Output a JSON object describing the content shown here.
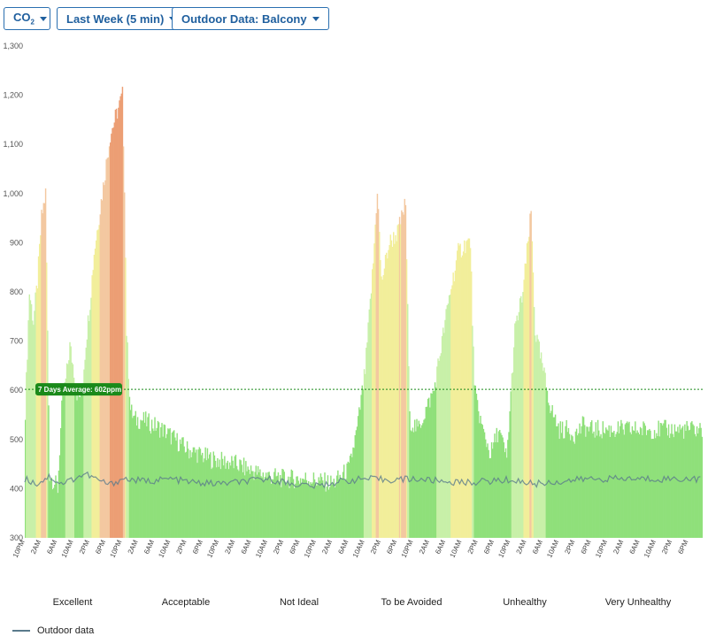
{
  "toolbar": {
    "metric_base": "CO",
    "metric_sub": "2",
    "period_label": "Last Week (5 min)",
    "outdoor_label": "Outdoor Data: Balcony"
  },
  "chart_data": {
    "type": "area",
    "ylim": [
      300,
      1300
    ],
    "yticks": [
      "300",
      "400",
      "500",
      "600",
      "700",
      "800",
      "900",
      "1,000",
      "1,100",
      "1,200",
      "1,300"
    ],
    "xticks": [
      "10PM",
      "2AM",
      "6AM",
      "10AM",
      "2PM",
      "6PM",
      "10PM",
      "2AM",
      "6AM",
      "10AM",
      "2PM",
      "6PM",
      "10PM",
      "2AM",
      "6AM",
      "10AM",
      "2PM",
      "6PM",
      "10PM",
      "2AM",
      "6AM",
      "10AM",
      "2PM",
      "6PM",
      "10PM",
      "2AM",
      "6AM",
      "10AM",
      "2PM",
      "6PM",
      "10PM",
      "2AM",
      "6AM",
      "10AM",
      "2PM",
      "6PM",
      "10PM",
      "2AM",
      "6AM",
      "10AM",
      "2PM",
      "6PM"
    ],
    "average": {
      "value": 602,
      "label": "7 Days Average: 602ppm"
    },
    "indoor_anchors_hours": [
      [
        0,
        560
      ],
      [
        1,
        800
      ],
      [
        2,
        740
      ],
      [
        3,
        820
      ],
      [
        4,
        950
      ],
      [
        5,
        1000
      ],
      [
        6,
        430
      ],
      [
        8,
        400
      ],
      [
        9,
        560
      ],
      [
        10,
        620
      ],
      [
        11,
        690
      ],
      [
        12,
        640
      ],
      [
        13,
        580
      ],
      [
        14,
        600
      ],
      [
        15,
        700
      ],
      [
        16,
        780
      ],
      [
        17,
        880
      ],
      [
        19,
        1000
      ],
      [
        21,
        1120
      ],
      [
        24,
        1200
      ],
      [
        24.5,
        1020
      ],
      [
        25,
        720
      ],
      [
        26,
        560
      ],
      [
        27,
        540
      ],
      [
        29,
        540
      ],
      [
        34,
        520
      ],
      [
        40,
        480
      ],
      [
        46,
        460
      ],
      [
        52,
        450
      ],
      [
        58,
        430
      ],
      [
        64,
        420
      ],
      [
        70,
        420
      ],
      [
        76,
        410
      ],
      [
        80,
        440
      ],
      [
        82,
        520
      ],
      [
        84,
        640
      ],
      [
        86,
        860
      ],
      [
        87,
        1010
      ],
      [
        88,
        820
      ],
      [
        90,
        900
      ],
      [
        92,
        920
      ],
      [
        94,
        980
      ],
      [
        95,
        540
      ],
      [
        97,
        520
      ],
      [
        99,
        560
      ],
      [
        101,
        600
      ],
      [
        103,
        700
      ],
      [
        105,
        800
      ],
      [
        107,
        880
      ],
      [
        109,
        900
      ],
      [
        110,
        900
      ],
      [
        111,
        600
      ],
      [
        113,
        520
      ],
      [
        115,
        470
      ],
      [
        117,
        520
      ],
      [
        119,
        460
      ],
      [
        121,
        720
      ],
      [
        123,
        800
      ],
      [
        125,
        960
      ],
      [
        126,
        720
      ],
      [
        128,
        640
      ],
      [
        130,
        560
      ],
      [
        132,
        520
      ],
      [
        134,
        520
      ],
      [
        136,
        510
      ],
      [
        138,
        530
      ],
      [
        139,
        520
      ]
    ],
    "outdoor_anchors_hours": [
      [
        0,
        420
      ],
      [
        3,
        410
      ],
      [
        6,
        425
      ],
      [
        9,
        410
      ],
      [
        12,
        420
      ],
      [
        15,
        430
      ],
      [
        18,
        418
      ],
      [
        21,
        408
      ],
      [
        24,
        420
      ],
      [
        30,
        415
      ],
      [
        36,
        420
      ],
      [
        42,
        412
      ],
      [
        48,
        410
      ],
      [
        54,
        414
      ],
      [
        60,
        420
      ],
      [
        66,
        410
      ],
      [
        72,
        405
      ],
      [
        78,
        415
      ],
      [
        84,
        420
      ],
      [
        90,
        418
      ],
      [
        96,
        420
      ],
      [
        102,
        416
      ],
      [
        108,
        412
      ],
      [
        114,
        415
      ],
      [
        120,
        418
      ],
      [
        126,
        410
      ],
      [
        132,
        414
      ],
      [
        139,
        420
      ]
    ],
    "quality_labels": [
      "Excellent",
      "Acceptable",
      "Not Ideal",
      "To be Avoided",
      "Unhealthy",
      "Very Unhealthy"
    ],
    "quality_colors": [
      "#22cc22",
      "#d9d92a",
      "#c9761e",
      "#cc1f1f",
      "#7722bb",
      "#7a3b0e"
    ],
    "legend": {
      "outdoor_label": "Outdoor data",
      "outdoor_color": "#5a7a8c"
    },
    "avg_color": "#1a8a1a"
  }
}
